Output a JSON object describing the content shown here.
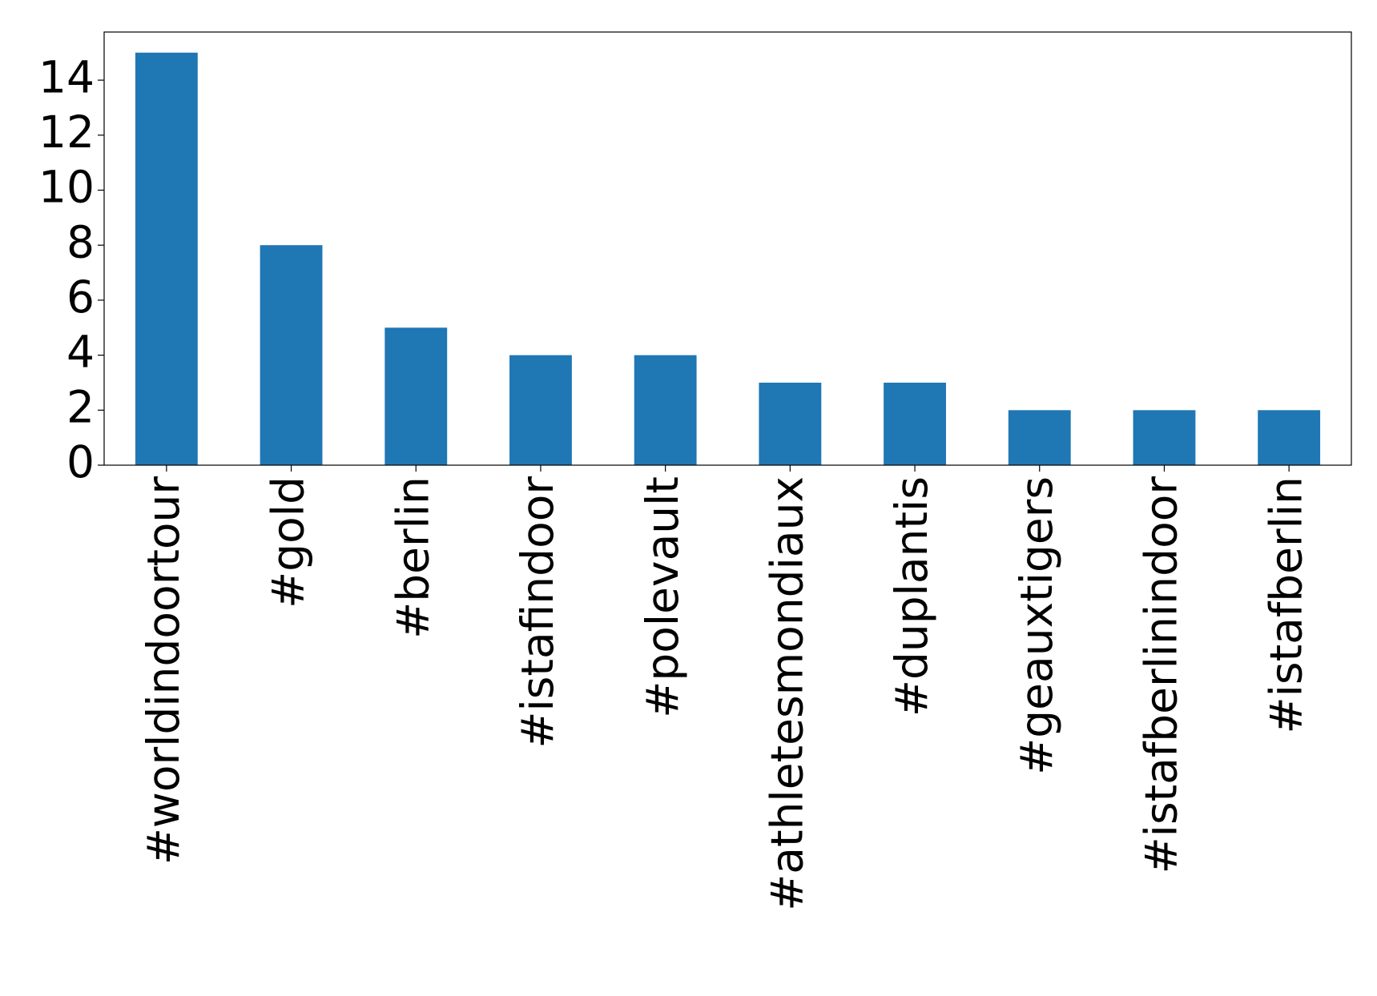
{
  "chart_data": {
    "type": "bar",
    "categories": [
      "#worldindoortour",
      "#gold",
      "#berlin",
      "#istafindoor",
      "#polevault",
      "#athletesmondiaux",
      "#duplantis",
      "#geauxtigers",
      "#istafberlinindoor",
      "#istafberlin"
    ],
    "values": [
      15,
      8,
      5,
      4,
      4,
      3,
      3,
      2,
      2,
      2
    ],
    "color": "#1f77b4",
    "ylim": [
      0,
      15.75
    ],
    "yticks": [
      0,
      2,
      4,
      6,
      8,
      10,
      12,
      14
    ],
    "grid": false
  }
}
